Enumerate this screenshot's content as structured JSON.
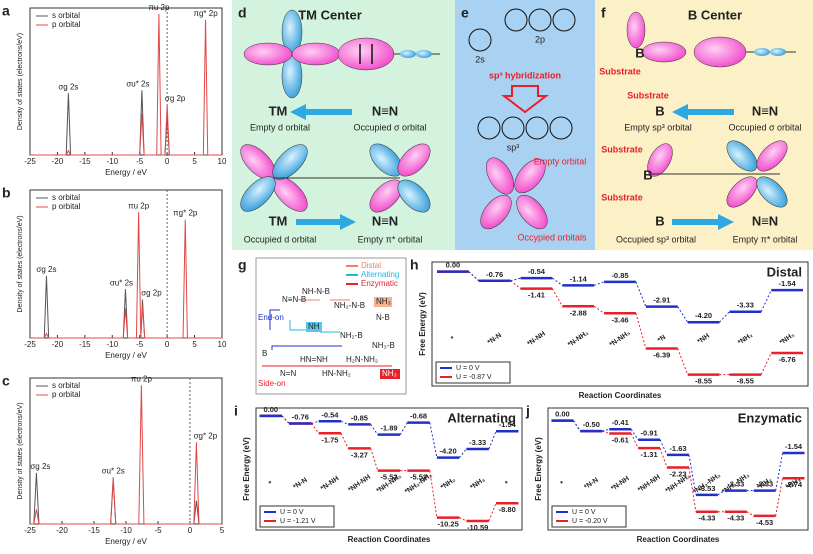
{
  "chart_data": [
    {
      "type": "line",
      "panel": "a",
      "xlabel": "Energy / eV",
      "ylabel": "Density of states (electrons/eV)",
      "x": [
        -25,
        -18.4,
        -18,
        -17.6,
        -5.0,
        -4.6,
        -4.2,
        -1.9,
        -1.5,
        -1.1,
        -0.4,
        0,
        0.4,
        6.6,
        7,
        7.4,
        10
      ],
      "xlim": [
        -25,
        10
      ],
      "xticks": [
        -25,
        -20,
        -15,
        -10,
        -5,
        0,
        5,
        10
      ],
      "ylim": [
        0,
        10
      ],
      "reference_line": 0,
      "legend": "upper left",
      "series": [
        {
          "name": "s orbital",
          "color": "#555555",
          "values": [
            0,
            0,
            4.2,
            0,
            0,
            4.4,
            0,
            0,
            0,
            0,
            0,
            2.6,
            0,
            0,
            0,
            0,
            0
          ]
        },
        {
          "name": "p orbital",
          "color": "#e04848",
          "values": [
            0,
            0,
            0.3,
            0,
            0,
            2.8,
            0,
            0,
            9.6,
            0,
            0,
            3.4,
            0,
            0,
            9.2,
            0,
            0
          ]
        }
      ],
      "annotations": [
        "σg 2s",
        "σu* 2s",
        "πu 2p",
        "σg 2p",
        "πg* 2p"
      ]
    },
    {
      "type": "line",
      "panel": "b",
      "xlabel": "Energy / eV",
      "ylabel": "Density of states (electrons/eV)",
      "x": [
        -25,
        -22.4,
        -22,
        -21.6,
        -8.0,
        -7.6,
        -7.2,
        -5.6,
        -5.2,
        -4.8,
        -4.5,
        -4.1,
        2.9,
        3.3,
        3.7,
        10
      ],
      "xlim": [
        -25,
        10
      ],
      "xticks": [
        -25,
        -20,
        -15,
        -10,
        -5,
        0,
        5,
        10
      ],
      "ylim": [
        0,
        10
      ],
      "reference_line": 0,
      "legend": "upper left",
      "series": [
        {
          "name": "s orbital",
          "color": "#555555",
          "values": [
            0,
            0,
            4.2,
            0,
            0,
            3.3,
            0,
            0,
            0,
            0,
            2.6,
            0,
            0,
            0,
            0,
            0
          ]
        },
        {
          "name": "p orbital",
          "color": "#e04848",
          "values": [
            0,
            0,
            0.3,
            0,
            0,
            2.0,
            0,
            0,
            8.5,
            0,
            2.2,
            0,
            0,
            8.0,
            0,
            0
          ]
        }
      ],
      "annotations": [
        "σg 2s",
        "σu* 2s",
        "πu 2p",
        "σg 2p",
        "πg* 2p"
      ]
    },
    {
      "type": "line",
      "panel": "c",
      "xlabel": "Energy / eV",
      "ylabel": "Density of states (electrons/eV)",
      "x": [
        -25,
        -24.4,
        -24,
        -23.6,
        -12.4,
        -12,
        -11.6,
        -8,
        -7.6,
        -7.2,
        0.6,
        1,
        1.4,
        5
      ],
      "xlim": [
        -25,
        5
      ],
      "xticks": [
        -25,
        -20,
        -15,
        -10,
        -5,
        0,
        5
      ],
      "ylim": [
        0,
        10
      ],
      "reference_line": 0,
      "legend": "upper left",
      "series": [
        {
          "name": "s orbital",
          "color": "#555555",
          "values": [
            0,
            0,
            3.5,
            0,
            0,
            3.0,
            0,
            0,
            0,
            0,
            0,
            1.6,
            0,
            0
          ]
        },
        {
          "name": "p orbital",
          "color": "#e04848",
          "values": [
            0,
            0,
            1.0,
            0,
            0,
            3.2,
            0,
            0,
            9.5,
            0,
            0,
            5.6,
            0,
            0
          ]
        }
      ],
      "annotations": [
        "σg 2s",
        "σu* 2s",
        "πu 2p",
        "σg* 2p"
      ]
    },
    {
      "type": "step",
      "panel": "h",
      "title": "Distal",
      "xlabel": "Reaction Coordinates",
      "ylabel": "Free Energy (eV)",
      "categories": [
        "*",
        "*N-N",
        "*N-NH",
        "*N-NH₂",
        "*N-NH₃",
        "*N",
        "*NH",
        "*NH₂",
        "*NH₃"
      ],
      "ylim": [
        -9.5,
        0.8
      ],
      "legend": "lower left",
      "series": [
        {
          "name": "U = 0 V",
          "color": "#2030c8",
          "values": [
            0.0,
            -0.76,
            -0.54,
            -1.14,
            -0.85,
            -2.91,
            -4.2,
            -3.33,
            -1.54
          ],
          "value_labels": [
            "0.00",
            "-0.76",
            "-0.54",
            "-1.14",
            "-0.85",
            "-2.91",
            "-4.20",
            "-3.33",
            "-1.54"
          ]
        },
        {
          "name": "U = -0.87 V",
          "color": "#e8202a",
          "values": [
            0.0,
            -0.76,
            -1.41,
            -2.88,
            -3.46,
            -6.39,
            -8.55,
            -8.55,
            -6.76
          ],
          "value_labels": [
            null,
            null,
            "-1.41",
            "-2.88",
            "-3.46",
            "-6.39",
            "-8.55",
            "-8.55",
            "-6.76"
          ]
        }
      ]
    },
    {
      "type": "step",
      "panel": "i",
      "title": "Alternating",
      "xlabel": "Reaction Coordinates",
      "ylabel": "Free Energy (eV)",
      "categories": [
        "*",
        "*N-N",
        "*N-NH",
        "*NH-NH",
        "*NH-NH₂",
        "*NH₂-NH₂",
        "*NH₂",
        "*NH₃",
        "*"
      ],
      "ylim": [
        -11.5,
        0.8
      ],
      "legend": "lower left",
      "series": [
        {
          "name": "U = 0 V",
          "color": "#2030c8",
          "values": [
            0.0,
            -0.76,
            -0.54,
            -0.85,
            -1.89,
            -0.68,
            -4.2,
            -3.33,
            -1.54
          ],
          "value_labels": [
            "0.00",
            "-0.76",
            "-0.54",
            "-0.85",
            "-1.89",
            "-0.68",
            "-4.20",
            "-3.33",
            "-1.54"
          ]
        },
        {
          "name": "U = -1.21 V",
          "color": "#e8202a",
          "values": [
            0.0,
            -0.76,
            -1.75,
            -3.27,
            -5.52,
            -5.52,
            -10.25,
            -10.59,
            -8.8
          ],
          "value_labels": [
            null,
            null,
            "-1.75",
            "-3.27",
            "-5.52",
            "-5.52",
            "-10.25",
            "-10.59",
            "-8.80"
          ]
        }
      ]
    },
    {
      "type": "step",
      "panel": "j",
      "title": "Enzymatic",
      "xlabel": "Reaction Coordinates",
      "ylabel": "Free Energy (eV)",
      "categories": [
        "*",
        "*N-N",
        "*N-NH",
        "*NH-NH",
        "*NH-NH₂",
        "*NH₂-NH₂",
        "*NH₂-NH₃",
        "*NH₂",
        "*NH₃"
      ],
      "ylim": [
        -5.2,
        0.6
      ],
      "legend": "lower left",
      "series": [
        {
          "name": "U = 0 V",
          "color": "#2030c8",
          "values": [
            0.0,
            -0.5,
            -0.41,
            -0.91,
            -1.63,
            -3.53,
            -3.33,
            -3.33,
            -1.54
          ],
          "value_labels": [
            "0.00",
            "-0.50",
            "-0.41",
            "-0.91",
            "-1.63",
            "-3.53",
            "-3.33",
            "-3.33",
            "-1.54"
          ]
        },
        {
          "name": "U = -0.20 V",
          "color": "#e8202a",
          "values": [
            0.0,
            -0.5,
            -0.61,
            -1.31,
            -2.23,
            -4.33,
            -4.33,
            -4.53,
            -2.74
          ],
          "value_labels": [
            null,
            null,
            "-0.61",
            "-1.31",
            "-2.23",
            "-4.33",
            "-4.33",
            "-4.53",
            "-2.74"
          ]
        }
      ]
    }
  ],
  "diagrams": {
    "d": {
      "panel": "d",
      "title": "TM Center",
      "top": {
        "left": "TM",
        "right": "N≡N",
        "left_caption": "Empty d orbital",
        "right_caption": "Occupied σ orbital"
      },
      "bottom": {
        "left": "TM",
        "right": "N≡N",
        "left_caption": "Occupied d orbital",
        "right_caption": "Empty π* orbital"
      }
    },
    "e": {
      "panel": "e",
      "labels": [
        "2s",
        "2p",
        "sp³ hybridization",
        "sp³",
        "Empty orbital",
        "Occypied orbitals"
      ]
    },
    "f": {
      "panel": "f",
      "title": "B Center",
      "top": {
        "center": "B",
        "substrates": [
          "Substrate",
          "Substrate"
        ],
        "left": "B",
        "right": "N≡N",
        "left_caption": "Empty sp³ orbital",
        "right_caption": "Occupied σ orbital"
      },
      "bottom": {
        "center": "B",
        "substrates": [
          "Substrate",
          "Substrate"
        ],
        "left": "B",
        "right": "N≡N",
        "left_caption": "Occupied sp³ orbital",
        "right_caption": "Empty π* orbital"
      }
    },
    "g": {
      "panel": "g",
      "legend": [
        "Distal",
        "Alternating",
        "Enzymatic"
      ],
      "start": [
        "End-on",
        "Side-on"
      ],
      "nodes": [
        "N≡N-B",
        "NH-N-B",
        "NH₂-N-B",
        "NH₃",
        "N-B",
        "NH",
        "NH₂-B",
        "NH₃-B",
        "B",
        "N=N",
        "HN=NH",
        "HN-NH₂",
        "H₂N-NH₂",
        "NH₃"
      ]
    }
  }
}
